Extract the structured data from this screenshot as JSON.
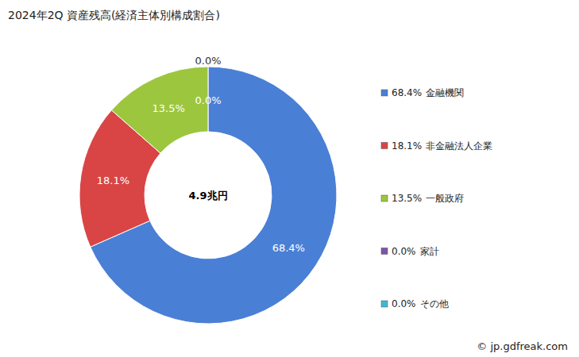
{
  "chart_data": {
    "type": "pie",
    "title": "2024年2Q 資産残高(経済主体別構成割合)",
    "categories": [
      "金融機関",
      "非金融法人企業",
      "一般政府",
      "家計",
      "その他"
    ],
    "values": [
      68.4,
      18.1,
      13.5,
      0.0,
      0.0
    ],
    "value_labels": [
      "68.4%",
      "18.1%",
      "13.5%",
      "0.0%",
      "0.0%"
    ],
    "colors": [
      "#4a7fd6",
      "#d94545",
      "#9cc63e",
      "#7b55a8",
      "#3cb9d4"
    ],
    "data_labels": true,
    "legend": "right",
    "annotations": [
      "4.9兆円"
    ],
    "source": "© jp.gdfreak.com"
  }
}
